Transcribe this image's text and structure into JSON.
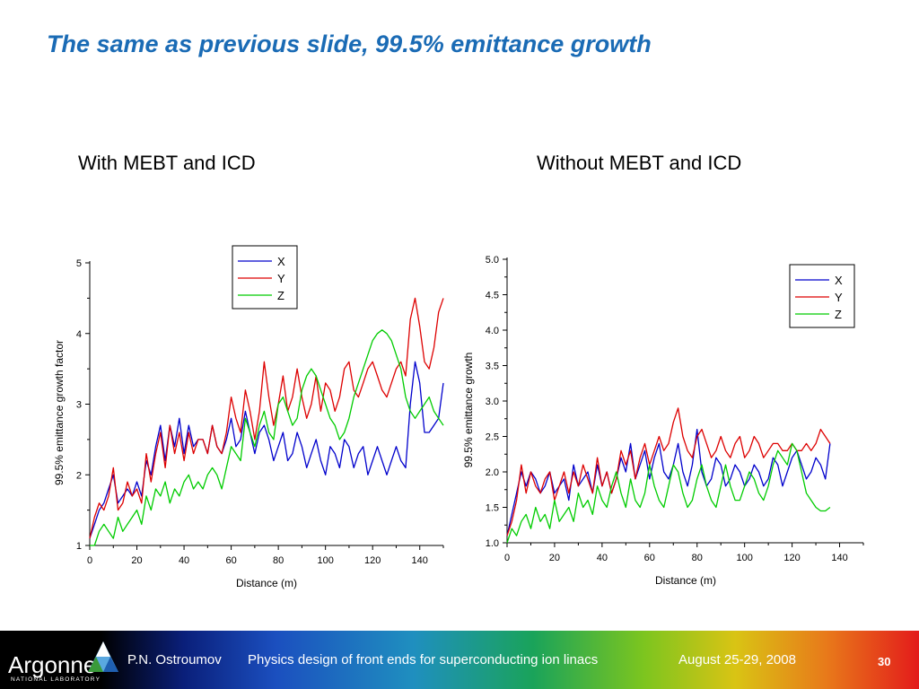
{
  "slide": {
    "title": "The same as previous slide, 99.5% emittance growth",
    "left_subtitle": "With MEBT and ICD",
    "right_subtitle": "Without MEBT and ICD"
  },
  "footer": {
    "logo_text": "Argonne",
    "logo_subtext": "NATIONAL LABORATORY",
    "presenter": "P.N. Ostroumov",
    "talk_title": "Physics design of front ends for superconducting ion linacs",
    "date": "August 25-29, 2008",
    "page_number": "30"
  },
  "chart_data": [
    {
      "type": "line",
      "title": "With MEBT and ICD",
      "xlabel": "Distance (m)",
      "ylabel": "99.5% emittance growth factor",
      "xlim": [
        0,
        150
      ],
      "ylim": [
        1,
        5
      ],
      "x_ticks": [
        "0",
        "20",
        "40",
        "60",
        "80",
        "100",
        "120",
        "140"
      ],
      "y_ticks": [
        "1",
        "2",
        "3",
        "4",
        "5"
      ],
      "legend_position": "top-right",
      "colors": {
        "X": "#0000cc",
        "Y": "#dd0000",
        "Z": "#00cc00"
      },
      "series": [
        {
          "name": "X",
          "x": [
            0,
            2,
            4,
            6,
            8,
            10,
            12,
            14,
            16,
            18,
            20,
            22,
            24,
            26,
            28,
            30,
            32,
            34,
            36,
            38,
            40,
            42,
            44,
            46,
            48,
            50,
            52,
            54,
            56,
            58,
            60,
            62,
            64,
            66,
            68,
            70,
            72,
            74,
            76,
            78,
            80,
            82,
            84,
            86,
            88,
            90,
            92,
            94,
            96,
            98,
            100,
            102,
            104,
            106,
            108,
            110,
            112,
            114,
            116,
            118,
            120,
            122,
            124,
            126,
            128,
            130,
            132,
            134,
            136,
            138,
            140,
            142,
            144,
            146,
            148,
            150
          ],
          "values": [
            1.1,
            1.3,
            1.5,
            1.6,
            1.8,
            2.0,
            1.6,
            1.7,
            1.8,
            1.7,
            1.9,
            1.7,
            2.2,
            2.0,
            2.4,
            2.7,
            2.2,
            2.7,
            2.4,
            2.8,
            2.3,
            2.7,
            2.4,
            2.5,
            2.5,
            2.3,
            2.7,
            2.4,
            2.3,
            2.5,
            2.8,
            2.4,
            2.5,
            2.9,
            2.6,
            2.3,
            2.6,
            2.7,
            2.5,
            2.2,
            2.4,
            2.6,
            2.2,
            2.3,
            2.6,
            2.4,
            2.1,
            2.3,
            2.5,
            2.2,
            2.0,
            2.4,
            2.3,
            2.1,
            2.5,
            2.4,
            2.1,
            2.3,
            2.4,
            2.0,
            2.2,
            2.4,
            2.2,
            2.0,
            2.2,
            2.4,
            2.2,
            2.1,
            3.0,
            3.6,
            3.3,
            2.6,
            2.6,
            2.7,
            2.8,
            3.3
          ]
        },
        {
          "name": "Y",
          "x": [
            0,
            2,
            4,
            6,
            8,
            10,
            12,
            14,
            16,
            18,
            20,
            22,
            24,
            26,
            28,
            30,
            32,
            34,
            36,
            38,
            40,
            42,
            44,
            46,
            48,
            50,
            52,
            54,
            56,
            58,
            60,
            62,
            64,
            66,
            68,
            70,
            72,
            74,
            76,
            78,
            80,
            82,
            84,
            86,
            88,
            90,
            92,
            94,
            96,
            98,
            100,
            102,
            104,
            106,
            108,
            110,
            112,
            114,
            116,
            118,
            120,
            122,
            124,
            126,
            128,
            130,
            132,
            134,
            136,
            138,
            140,
            142,
            144,
            146,
            148,
            150
          ],
          "values": [
            1.1,
            1.4,
            1.6,
            1.5,
            1.7,
            2.1,
            1.5,
            1.6,
            1.9,
            1.7,
            1.8,
            1.6,
            2.3,
            1.9,
            2.3,
            2.6,
            2.1,
            2.7,
            2.3,
            2.6,
            2.2,
            2.6,
            2.3,
            2.5,
            2.5,
            2.3,
            2.7,
            2.4,
            2.3,
            2.6,
            3.1,
            2.8,
            2.6,
            3.2,
            2.9,
            2.5,
            2.9,
            3.6,
            3.1,
            2.7,
            3.0,
            3.4,
            2.9,
            3.1,
            3.5,
            3.1,
            2.8,
            3.0,
            3.4,
            2.9,
            3.3,
            3.2,
            2.9,
            3.1,
            3.5,
            3.6,
            3.2,
            3.1,
            3.3,
            3.5,
            3.6,
            3.4,
            3.2,
            3.1,
            3.3,
            3.5,
            3.6,
            3.4,
            4.2,
            4.5,
            4.1,
            3.6,
            3.5,
            3.8,
            4.3,
            4.5
          ]
        },
        {
          "name": "Z",
          "x": [
            0,
            2,
            4,
            6,
            8,
            10,
            12,
            14,
            16,
            18,
            20,
            22,
            24,
            26,
            28,
            30,
            32,
            34,
            36,
            38,
            40,
            42,
            44,
            46,
            48,
            50,
            52,
            54,
            56,
            58,
            60,
            62,
            64,
            66,
            68,
            70,
            72,
            74,
            76,
            78,
            80,
            82,
            84,
            86,
            88,
            90,
            92,
            94,
            96,
            98,
            100,
            102,
            104,
            106,
            108,
            110,
            112,
            114,
            116,
            118,
            120,
            122,
            124,
            126,
            128,
            130,
            132,
            134,
            136,
            138,
            140,
            142,
            144,
            146,
            148,
            150
          ],
          "values": [
            1.0,
            1.0,
            1.2,
            1.3,
            1.2,
            1.1,
            1.4,
            1.2,
            1.3,
            1.4,
            1.5,
            1.3,
            1.7,
            1.5,
            1.8,
            1.7,
            1.9,
            1.6,
            1.8,
            1.7,
            1.9,
            2.0,
            1.8,
            1.9,
            1.8,
            2.0,
            2.1,
            2.0,
            1.8,
            2.1,
            2.4,
            2.3,
            2.2,
            2.8,
            2.6,
            2.4,
            2.7,
            2.9,
            2.6,
            2.5,
            3.0,
            3.1,
            2.9,
            2.7,
            2.8,
            3.2,
            3.4,
            3.5,
            3.4,
            3.2,
            3.0,
            2.8,
            2.7,
            2.5,
            2.6,
            2.8,
            3.1,
            3.3,
            3.5,
            3.7,
            3.9,
            4.0,
            4.05,
            4.0,
            3.9,
            3.7,
            3.5,
            3.1,
            2.9,
            2.8,
            2.9,
            3.0,
            3.1,
            2.9,
            2.8,
            2.7
          ]
        }
      ]
    },
    {
      "type": "line",
      "title": "Without MEBT and ICD",
      "xlabel": "Distance (m)",
      "ylabel": "99.5% emittance growth",
      "xlim": [
        0,
        150
      ],
      "ylim": [
        1.0,
        5.0
      ],
      "x_ticks": [
        "0",
        "20",
        "40",
        "60",
        "80",
        "100",
        "120",
        "140"
      ],
      "y_ticks": [
        "1.0",
        "1.5",
        "2.0",
        "2.5",
        "3.0",
        "3.5",
        "4.0",
        "4.5",
        "5.0"
      ],
      "legend_position": "top-right",
      "colors": {
        "X": "#0000cc",
        "Y": "#dd0000",
        "Z": "#00cc00"
      },
      "series": [
        {
          "name": "X",
          "x": [
            0,
            2,
            4,
            6,
            8,
            10,
            12,
            14,
            16,
            18,
            20,
            22,
            24,
            26,
            28,
            30,
            32,
            34,
            36,
            38,
            40,
            42,
            44,
            46,
            48,
            50,
            52,
            54,
            56,
            58,
            60,
            62,
            64,
            66,
            68,
            70,
            72,
            74,
            76,
            78,
            80,
            82,
            84,
            86,
            88,
            90,
            92,
            94,
            96,
            98,
            100,
            102,
            104,
            106,
            108,
            110,
            112,
            114,
            116,
            118,
            120,
            122,
            124,
            126,
            128,
            130,
            132,
            134,
            136
          ],
          "values": [
            1.1,
            1.4,
            1.7,
            2.0,
            1.8,
            2.0,
            1.9,
            1.7,
            1.8,
            2.0,
            1.7,
            1.8,
            1.9,
            1.6,
            2.1,
            1.8,
            1.9,
            2.0,
            1.7,
            2.1,
            1.8,
            2.0,
            1.7,
            1.9,
            2.2,
            2.0,
            2.4,
            1.9,
            2.1,
            2.3,
            1.9,
            2.2,
            2.4,
            2.0,
            1.9,
            2.1,
            2.4,
            2.0,
            1.8,
            2.1,
            2.6,
            2.0,
            1.8,
            1.9,
            2.2,
            2.1,
            1.8,
            1.9,
            2.1,
            2.0,
            1.8,
            1.9,
            2.1,
            2.0,
            1.8,
            1.9,
            2.2,
            2.1,
            1.8,
            2.0,
            2.2,
            2.3,
            2.1,
            1.9,
            2.0,
            2.2,
            2.1,
            1.9,
            2.4
          ]
        },
        {
          "name": "Y",
          "x": [
            0,
            2,
            4,
            6,
            8,
            10,
            12,
            14,
            16,
            18,
            20,
            22,
            24,
            26,
            28,
            30,
            32,
            34,
            36,
            38,
            40,
            42,
            44,
            46,
            48,
            50,
            52,
            54,
            56,
            58,
            60,
            62,
            64,
            66,
            68,
            70,
            72,
            74,
            76,
            78,
            80,
            82,
            84,
            86,
            88,
            90,
            92,
            94,
            96,
            98,
            100,
            102,
            104,
            106,
            108,
            110,
            112,
            114,
            116,
            118,
            120,
            122,
            124,
            126,
            128,
            130,
            132,
            134,
            136
          ],
          "values": [
            1.1,
            1.3,
            1.6,
            2.1,
            1.7,
            2.0,
            1.8,
            1.7,
            1.9,
            2.0,
            1.6,
            1.8,
            2.0,
            1.7,
            2.0,
            1.8,
            2.1,
            1.9,
            1.7,
            2.2,
            1.8,
            2.0,
            1.7,
            1.9,
            2.3,
            2.1,
            2.3,
            1.9,
            2.2,
            2.4,
            2.1,
            2.3,
            2.5,
            2.3,
            2.4,
            2.7,
            2.9,
            2.5,
            2.3,
            2.2,
            2.5,
            2.6,
            2.4,
            2.2,
            2.3,
            2.5,
            2.3,
            2.2,
            2.4,
            2.5,
            2.2,
            2.3,
            2.5,
            2.4,
            2.2,
            2.3,
            2.4,
            2.4,
            2.3,
            2.3,
            2.4,
            2.3,
            2.3,
            2.4,
            2.3,
            2.4,
            2.6,
            2.5,
            2.4
          ]
        },
        {
          "name": "Z",
          "x": [
            0,
            2,
            4,
            6,
            8,
            10,
            12,
            14,
            16,
            18,
            20,
            22,
            24,
            26,
            28,
            30,
            32,
            34,
            36,
            38,
            40,
            42,
            44,
            46,
            48,
            50,
            52,
            54,
            56,
            58,
            60,
            62,
            64,
            66,
            68,
            70,
            72,
            74,
            76,
            78,
            80,
            82,
            84,
            86,
            88,
            90,
            92,
            94,
            96,
            98,
            100,
            102,
            104,
            106,
            108,
            110,
            112,
            114,
            116,
            118,
            120,
            122,
            124,
            126,
            128,
            130,
            132,
            134,
            136
          ],
          "values": [
            1.0,
            1.2,
            1.1,
            1.3,
            1.4,
            1.2,
            1.5,
            1.3,
            1.4,
            1.2,
            1.6,
            1.3,
            1.4,
            1.5,
            1.3,
            1.7,
            1.5,
            1.6,
            1.4,
            1.8,
            1.6,
            1.5,
            1.8,
            2.0,
            1.7,
            1.5,
            1.9,
            1.6,
            1.5,
            1.7,
            2.1,
            1.8,
            1.6,
            1.5,
            1.8,
            2.1,
            2.0,
            1.7,
            1.5,
            1.6,
            1.9,
            2.1,
            1.8,
            1.6,
            1.5,
            1.8,
            2.1,
            1.8,
            1.6,
            1.6,
            1.8,
            2.0,
            1.9,
            1.7,
            1.6,
            1.8,
            2.1,
            2.3,
            2.2,
            2.1,
            2.4,
            2.3,
            2.0,
            1.7,
            1.6,
            1.5,
            1.45,
            1.45,
            1.5
          ]
        }
      ]
    }
  ]
}
